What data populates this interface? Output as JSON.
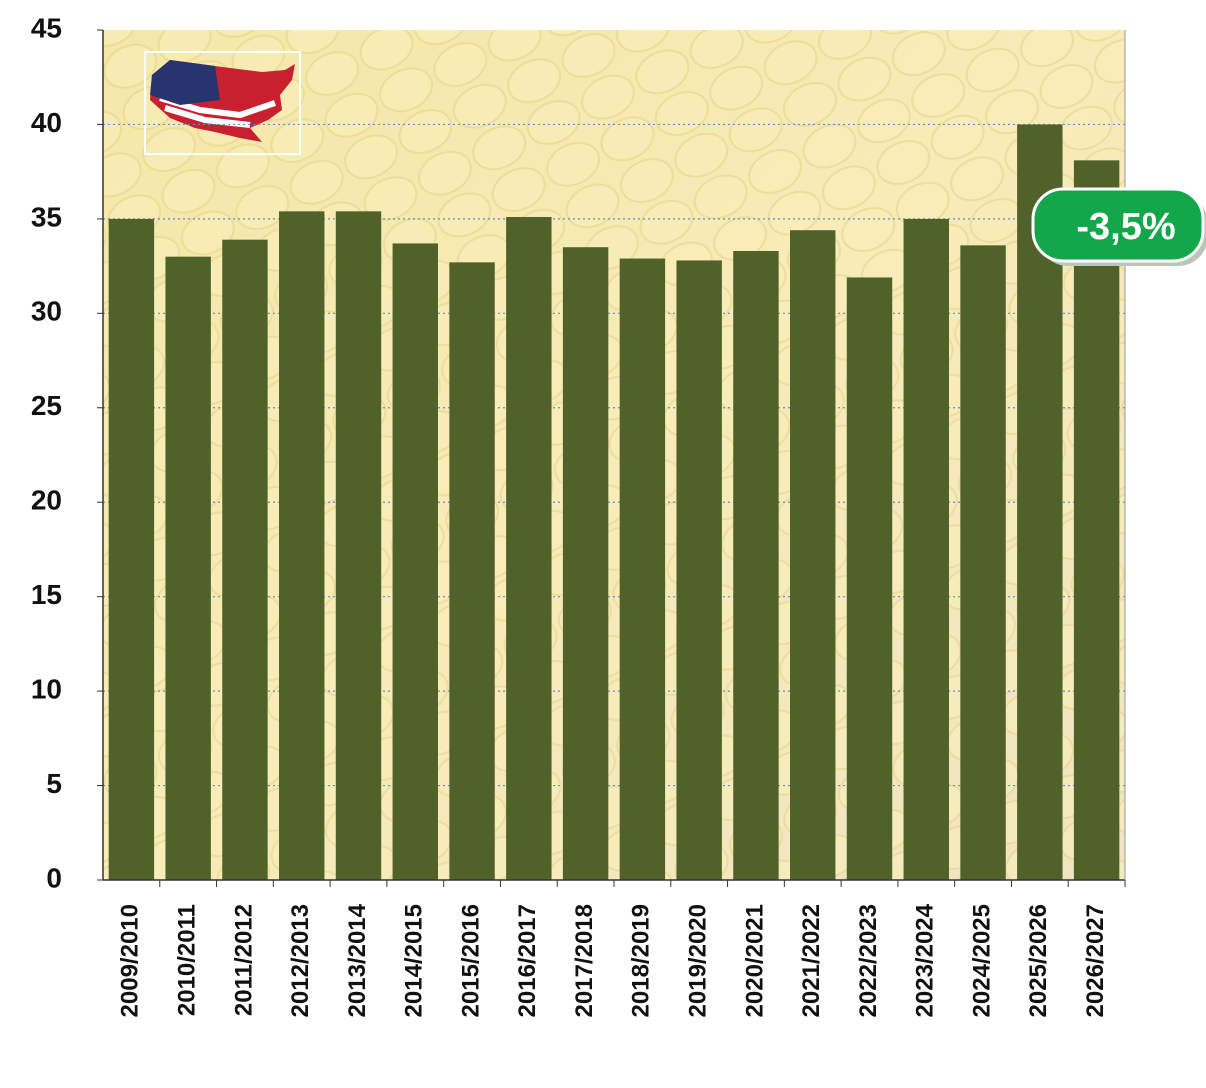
{
  "chart_data": {
    "type": "bar",
    "categories": [
      "2009/2010",
      "2010/2011",
      "2011/2012",
      "2012/2013",
      "2013/2014",
      "2014/2015",
      "2015/2016",
      "2016/2017",
      "2017/2018",
      "2018/2019",
      "2019/2020",
      "2020/2021",
      "2021/2022",
      "2022/2023",
      "2023/2024",
      "2024/2025",
      "2025/2026",
      "2026/2027"
    ],
    "values": [
      35.0,
      33.0,
      33.9,
      35.4,
      35.4,
      33.7,
      32.7,
      35.1,
      33.5,
      32.9,
      32.8,
      33.3,
      34.4,
      31.9,
      35.0,
      33.6,
      40.0,
      38.1
    ],
    "color": "#50622a",
    "ylim": [
      0,
      45
    ],
    "yticks": [
      0,
      5,
      10,
      15,
      20,
      25,
      30,
      35,
      40,
      45
    ],
    "grid": true,
    "annotation": "-3,5%"
  }
}
